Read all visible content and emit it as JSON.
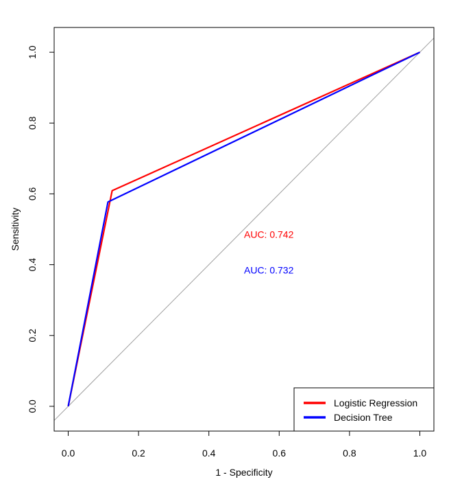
{
  "chart_data": {
    "type": "line",
    "xlabel": "1 - Specificity",
    "ylabel": "Sensitivity",
    "xlim": [
      -0.04,
      1.04
    ],
    "ylim": [
      -0.07,
      1.07
    ],
    "x_ticks": [
      0.0,
      0.2,
      0.4,
      0.6,
      0.8,
      1.0
    ],
    "x_tick_labels": [
      "0.0",
      "0.2",
      "0.4",
      "0.6",
      "0.8",
      "1.0"
    ],
    "y_ticks": [
      0.0,
      0.2,
      0.4,
      0.6,
      0.8,
      1.0
    ],
    "y_tick_labels": [
      "0.0",
      "0.2",
      "0.4",
      "0.6",
      "0.8",
      "1.0"
    ],
    "grid": false,
    "reference_line": {
      "slope": 1,
      "intercept": 0,
      "color": "#9e9e9e"
    },
    "series": [
      {
        "name": "Logistic Regression",
        "color": "#ff0000",
        "points": [
          [
            0.0,
            0.0
          ],
          [
            0.125,
            0.609
          ],
          [
            1.0,
            1.0
          ]
        ]
      },
      {
        "name": "Decision Tree",
        "color": "#0000ff",
        "points": [
          [
            0.0,
            0.0
          ],
          [
            0.113,
            0.577
          ],
          [
            1.0,
            1.0
          ]
        ]
      }
    ],
    "annotations": [
      {
        "text": "AUC: 0.742",
        "x": 0.5,
        "y": 0.485,
        "color": "#ff0000"
      },
      {
        "text": "AUC: 0.732",
        "x": 0.5,
        "y": 0.385,
        "color": "#0000ff"
      }
    ],
    "legend": {
      "position": "bottom-right",
      "entries": [
        "Logistic Regression",
        "Decision Tree"
      ]
    }
  }
}
